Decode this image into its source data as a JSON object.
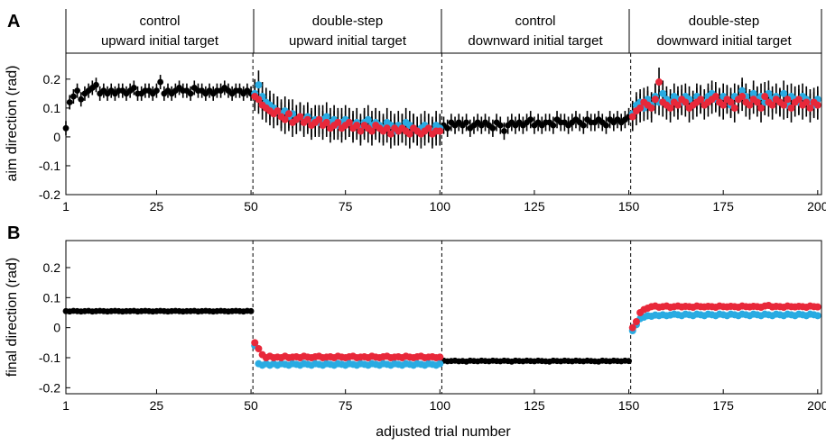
{
  "colors": {
    "control": "#000000",
    "up_series": "#29abe2",
    "down_series": "#e8283a"
  },
  "conditions": [
    {
      "line1": "control",
      "line2": "upward initial target"
    },
    {
      "line1": "double-step",
      "line2": "upward initial target"
    },
    {
      "line1": "control",
      "line2": "downward initial target"
    },
    {
      "line1": "double-step",
      "line2": "downward initial target"
    }
  ],
  "chart_data": [
    {
      "panel_label": "A",
      "type": "scatter",
      "ylabel": "aim direction (rad)",
      "xlabel": "",
      "xlim": [
        1,
        201
      ],
      "ylim": [
        -0.2,
        0.29
      ],
      "xticks": [
        1,
        25,
        50,
        75,
        100,
        125,
        150,
        175,
        200
      ],
      "yticks": [
        -0.2,
        -0.1,
        0,
        0.1,
        0.2
      ],
      "ytick_labels": [
        "-0.2",
        "-0.1",
        "0",
        "0.1",
        "0.2"
      ],
      "condition_boundaries": [
        50.5,
        100.5,
        150.5
      ],
      "series": [
        {
          "color": "black",
          "segments": [
            {
              "x0": 1,
              "x1": 50,
              "y": [
                0.03,
                0.12,
                0.14,
                0.16,
                0.13,
                0.15,
                0.16,
                0.17,
                0.18,
                0.15,
                0.16,
                0.15,
                0.16,
                0.15,
                0.16,
                0.16,
                0.15,
                0.16,
                0.17,
                0.15,
                0.15,
                0.16,
                0.16,
                0.15,
                0.16,
                0.19,
                0.15,
                0.16,
                0.15,
                0.16,
                0.17,
                0.16,
                0.16,
                0.15,
                0.17,
                0.16,
                0.16,
                0.15,
                0.16,
                0.15,
                0.16,
                0.16,
                0.17,
                0.16,
                0.15,
                0.16,
                0.16,
                0.15,
                0.16,
                0.15
              ],
              "err": 0.025
            },
            {
              "x0": 101,
              "x1": 150,
              "y": [
                0.04,
                0.03,
                0.05,
                0.04,
                0.05,
                0.04,
                0.05,
                0.03,
                0.04,
                0.05,
                0.04,
                0.05,
                0.04,
                0.03,
                0.05,
                0.04,
                0.02,
                0.04,
                0.05,
                0.04,
                0.05,
                0.04,
                0.05,
                0.06,
                0.04,
                0.05,
                0.04,
                0.05,
                0.05,
                0.04,
                0.06,
                0.05,
                0.05,
                0.04,
                0.05,
                0.06,
                0.05,
                0.04,
                0.06,
                0.05,
                0.05,
                0.06,
                0.05,
                0.04,
                0.06,
                0.05,
                0.06,
                0.05,
                0.06,
                0.07
              ],
              "err": 0.03
            }
          ]
        },
        {
          "color": "blue",
          "segments": [
            {
              "x0": 51,
              "x1": 100,
              "y": [
                0.15,
                0.18,
                0.14,
                0.12,
                0.11,
                0.1,
                0.09,
                0.08,
                0.09,
                0.07,
                0.08,
                0.06,
                0.07,
                0.06,
                0.07,
                0.05,
                0.06,
                0.05,
                0.06,
                0.07,
                0.05,
                0.06,
                0.04,
                0.05,
                0.06,
                0.05,
                0.04,
                0.05,
                0.03,
                0.05,
                0.06,
                0.04,
                0.05,
                0.04,
                0.03,
                0.05,
                0.04,
                0.02,
                0.04,
                0.03,
                0.05,
                0.04,
                0.03,
                0.02,
                0.03,
                0.04,
                0.03,
                0.02,
                0.04,
                0.03
              ],
              "err": 0.05
            },
            {
              "x0": 151,
              "x1": 200,
              "y": [
                0.08,
                0.11,
                0.12,
                0.1,
                0.13,
                0.11,
                0.14,
                0.12,
                0.15,
                0.13,
                0.12,
                0.14,
                0.13,
                0.12,
                0.14,
                0.13,
                0.11,
                0.14,
                0.13,
                0.12,
                0.14,
                0.15,
                0.13,
                0.12,
                0.14,
                0.13,
                0.11,
                0.14,
                0.13,
                0.16,
                0.14,
                0.12,
                0.15,
                0.13,
                0.14,
                0.12,
                0.15,
                0.13,
                0.14,
                0.12,
                0.15,
                0.11,
                0.14,
                0.13,
                0.12,
                0.14,
                0.13,
                0.12,
                0.11,
                0.13
              ],
              "err": 0.045
            }
          ]
        },
        {
          "color": "red",
          "segments": [
            {
              "x0": 51,
              "x1": 100,
              "y": [
                0.14,
                0.13,
                0.11,
                0.1,
                0.09,
                0.08,
                0.09,
                0.07,
                0.06,
                0.08,
                0.05,
                0.06,
                0.07,
                0.05,
                0.06,
                0.04,
                0.05,
                0.06,
                0.04,
                0.05,
                0.03,
                0.04,
                0.05,
                0.03,
                0.04,
                0.05,
                0.03,
                0.04,
                0.02,
                0.04,
                0.03,
                0.02,
                0.04,
                0.03,
                0.02,
                0.03,
                0.01,
                0.03,
                0.02,
                0.03,
                0.02,
                0.01,
                0.03,
                0.02,
                0.01,
                0.02,
                0.03,
                0.01,
                0.02,
                0.02
              ],
              "err": 0.05
            },
            {
              "x0": 151,
              "x1": 200,
              "y": [
                0.07,
                0.09,
                0.1,
                0.12,
                0.11,
                0.1,
                0.13,
                0.19,
                0.12,
                0.11,
                0.1,
                0.12,
                0.11,
                0.13,
                0.12,
                0.1,
                0.11,
                0.12,
                0.13,
                0.11,
                0.12,
                0.13,
                0.14,
                0.12,
                0.11,
                0.13,
                0.12,
                0.1,
                0.13,
                0.14,
                0.12,
                0.11,
                0.13,
                0.12,
                0.1,
                0.14,
                0.12,
                0.11,
                0.13,
                0.12,
                0.11,
                0.13,
                0.1,
                0.12,
                0.13,
                0.11,
                0.12,
                0.1,
                0.12,
                0.11
              ],
              "err": 0.05
            }
          ]
        }
      ]
    },
    {
      "panel_label": "B",
      "type": "scatter",
      "ylabel": "final direction (rad)",
      "xlabel": "adjusted trial number",
      "xlim": [
        1,
        201
      ],
      "ylim": [
        -0.22,
        0.29
      ],
      "xticks": [
        1,
        25,
        50,
        75,
        100,
        125,
        150,
        175,
        200
      ],
      "yticks": [
        -0.2,
        -0.1,
        0,
        0.1,
        0.2
      ],
      "ytick_labels": [
        "-0.2",
        "-0.1",
        "0",
        "0.1",
        "0.2"
      ],
      "condition_boundaries": [
        50.5,
        100.5,
        150.5
      ],
      "series": [
        {
          "color": "black",
          "segments": [
            {
              "x0": 1,
              "x1": 50,
              "y": [
                0.055,
                0.054,
                0.056,
                0.055,
                0.054,
                0.055,
                0.056,
                0.054,
                0.055,
                0.056,
                0.055,
                0.054,
                0.055,
                0.056,
                0.055,
                0.054,
                0.055,
                0.055,
                0.056,
                0.054,
                0.055,
                0.056,
                0.055,
                0.054,
                0.055,
                0.056,
                0.055,
                0.054,
                0.055,
                0.056,
                0.055,
                0.054,
                0.055,
                0.055,
                0.056,
                0.054,
                0.055,
                0.056,
                0.055,
                0.054,
                0.055,
                0.056,
                0.055,
                0.054,
                0.055,
                0.056,
                0.055,
                0.054,
                0.056,
                0.055
              ]
            },
            {
              "x0": 101,
              "x1": 150,
              "y": [
                -0.11,
                -0.112,
                -0.111,
                -0.11,
                -0.112,
                -0.111,
                -0.113,
                -0.11,
                -0.111,
                -0.112,
                -0.11,
                -0.111,
                -0.112,
                -0.11,
                -0.111,
                -0.112,
                -0.11,
                -0.111,
                -0.113,
                -0.11,
                -0.111,
                -0.112,
                -0.11,
                -0.111,
                -0.112,
                -0.11,
                -0.111,
                -0.112,
                -0.113,
                -0.11,
                -0.111,
                -0.112,
                -0.11,
                -0.111,
                -0.112,
                -0.11,
                -0.111,
                -0.112,
                -0.11,
                -0.111,
                -0.112,
                -0.113,
                -0.11,
                -0.111,
                -0.112,
                -0.11,
                -0.111,
                -0.112,
                -0.11,
                -0.111
              ]
            }
          ]
        },
        {
          "color": "blue",
          "segments": [
            {
              "x0": 51,
              "x1": 100,
              "y": [
                -0.06,
                -0.12,
                -0.125,
                -0.12,
                -0.125,
                -0.12,
                -0.125,
                -0.12,
                -0.122,
                -0.125,
                -0.12,
                -0.122,
                -0.125,
                -0.12,
                -0.122,
                -0.125,
                -0.12,
                -0.122,
                -0.125,
                -0.12,
                -0.122,
                -0.125,
                -0.12,
                -0.122,
                -0.125,
                -0.12,
                -0.122,
                -0.125,
                -0.12,
                -0.122,
                -0.125,
                -0.12,
                -0.122,
                -0.125,
                -0.12,
                -0.122,
                -0.125,
                -0.12,
                -0.122,
                -0.125,
                -0.12,
                -0.122,
                -0.125,
                -0.12,
                -0.122,
                -0.125,
                -0.12,
                -0.122,
                -0.125,
                -0.12
              ]
            },
            {
              "x0": 151,
              "x1": 200,
              "y": [
                -0.01,
                0.01,
                0.03,
                0.035,
                0.04,
                0.038,
                0.042,
                0.04,
                0.043,
                0.04,
                0.042,
                0.045,
                0.043,
                0.04,
                0.045,
                0.043,
                0.04,
                0.045,
                0.043,
                0.04,
                0.045,
                0.043,
                0.04,
                0.045,
                0.043,
                0.04,
                0.045,
                0.043,
                0.04,
                0.045,
                0.043,
                0.04,
                0.045,
                0.043,
                0.04,
                0.045,
                0.043,
                0.04,
                0.045,
                0.043,
                0.04,
                0.045,
                0.043,
                0.04,
                0.045,
                0.043,
                0.04,
                0.045,
                0.043,
                0.04
              ]
            }
          ]
        },
        {
          "color": "red",
          "segments": [
            {
              "x0": 51,
              "x1": 100,
              "y": [
                -0.05,
                -0.07,
                -0.09,
                -0.1,
                -0.095,
                -0.1,
                -0.098,
                -0.1,
                -0.095,
                -0.1,
                -0.098,
                -0.097,
                -0.1,
                -0.095,
                -0.098,
                -0.1,
                -0.097,
                -0.095,
                -0.1,
                -0.098,
                -0.097,
                -0.1,
                -0.095,
                -0.098,
                -0.1,
                -0.097,
                -0.095,
                -0.1,
                -0.098,
                -0.097,
                -0.1,
                -0.095,
                -0.098,
                -0.1,
                -0.097,
                -0.095,
                -0.1,
                -0.098,
                -0.097,
                -0.1,
                -0.095,
                -0.098,
                -0.1,
                -0.097,
                -0.095,
                -0.1,
                -0.098,
                -0.097,
                -0.1,
                -0.098
              ]
            },
            {
              "x0": 151,
              "x1": 200,
              "y": [
                0.0,
                0.02,
                0.05,
                0.06,
                0.065,
                0.07,
                0.072,
                0.068,
                0.07,
                0.072,
                0.068,
                0.07,
                0.072,
                0.069,
                0.071,
                0.07,
                0.068,
                0.072,
                0.07,
                0.069,
                0.071,
                0.07,
                0.068,
                0.072,
                0.07,
                0.069,
                0.071,
                0.07,
                0.068,
                0.072,
                0.07,
                0.069,
                0.071,
                0.07,
                0.068,
                0.072,
                0.074,
                0.069,
                0.071,
                0.07,
                0.068,
                0.072,
                0.07,
                0.069,
                0.071,
                0.07,
                0.068,
                0.072,
                0.07,
                0.069
              ]
            }
          ]
        }
      ]
    }
  ]
}
